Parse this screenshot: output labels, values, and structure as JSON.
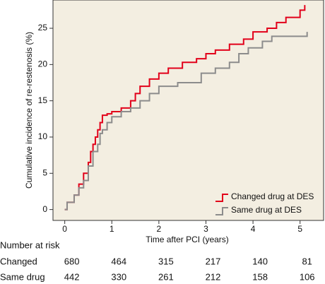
{
  "chart_data": {
    "type": "step",
    "xlabel": "Time after PCI (years)",
    "ylabel": "Cumulative incidence of re-restenosis (%)",
    "xlim": [
      -0.25,
      5.5
    ],
    "ylim": [
      -1.5,
      28.9
    ],
    "xticks": [
      0,
      1,
      2,
      3,
      4,
      5
    ],
    "yticks": [
      0,
      5,
      10,
      15,
      20,
      25
    ],
    "legend": "lower right",
    "background": "#f3eee1",
    "series": [
      {
        "name": "Changed drug at DES",
        "color": "#e2001a",
        "x": [
          0,
          0.05,
          0.2,
          0.3,
          0.4,
          0.5,
          0.55,
          0.6,
          0.65,
          0.7,
          0.75,
          0.8,
          0.9,
          1.0,
          1.2,
          1.4,
          1.5,
          1.6,
          1.8,
          2.0,
          2.2,
          2.5,
          2.8,
          3.0,
          3.2,
          3.5,
          3.8,
          4.0,
          4.3,
          4.5,
          4.7,
          5.0,
          5.1
        ],
        "values": [
          0,
          1,
          2,
          3.5,
          5,
          6.5,
          8,
          9,
          10,
          11,
          12,
          13,
          13.2,
          13.5,
          14,
          15,
          16,
          17,
          18,
          18.8,
          19.5,
          20.3,
          20.8,
          21.5,
          22,
          22.8,
          23.5,
          24.5,
          25,
          25.8,
          26.5,
          27.5,
          28.2
        ]
      },
      {
        "name": "Same drug at DES",
        "color": "#8c8c8c",
        "x": [
          0,
          0.05,
          0.2,
          0.3,
          0.4,
          0.5,
          0.6,
          0.7,
          0.75,
          0.8,
          0.9,
          1.0,
          1.2,
          1.4,
          1.6,
          1.8,
          2.0,
          2.4,
          2.9,
          3.2,
          3.5,
          3.7,
          3.9,
          4.2,
          4.4,
          5.15
        ],
        "values": [
          0,
          1,
          2,
          3,
          4,
          6,
          8,
          9,
          10.5,
          11,
          12,
          12.8,
          13.5,
          14,
          15,
          16,
          17,
          17.5,
          18.8,
          19.5,
          20.3,
          21.5,
          22.3,
          23.2,
          23.9,
          24.5
        ]
      }
    ],
    "risk_table": {
      "title": "Number at risk",
      "rows": [
        {
          "label": "Changed",
          "values": [
            680,
            464,
            315,
            217,
            140,
            81
          ]
        },
        {
          "label": "Same drug",
          "values": [
            442,
            330,
            261,
            212,
            158,
            106
          ]
        }
      ]
    }
  }
}
